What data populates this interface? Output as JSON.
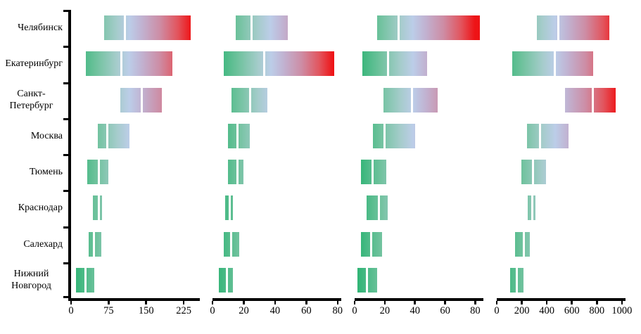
{
  "chart_data": {
    "type": "bar",
    "subtype": "range-bar-small-multiples",
    "orientation": "horizontal",
    "grid": false,
    "legend": false,
    "title": "",
    "categories": [
      "Челябинск",
      "Екатеринбург",
      "Санкт-Петербург",
      "Москва",
      "Тюмень",
      "Краснодар",
      "Салехард",
      "Нижний Новгород"
    ],
    "axis_color": "#000000",
    "background": "#ffffff",
    "gradient": {
      "description": "bar fill encodes x-value along axis: green (low) to pale blue (middle) to red (high)",
      "stops": [
        {
          "pos": 0.0,
          "color": "#26b26f"
        },
        {
          "pos": 0.2,
          "color": "#6fc29d"
        },
        {
          "pos": 0.36,
          "color": "#a5cccb"
        },
        {
          "pos": 0.46,
          "color": "#bccde8"
        },
        {
          "pos": 0.56,
          "color": "#c1b2d1"
        },
        {
          "pos": 0.7,
          "color": "#cd8da5"
        },
        {
          "pos": 0.84,
          "color": "#e2555e"
        },
        {
          "pos": 0.95,
          "color": "#ee1316"
        },
        {
          "pos": 1.0,
          "color": "#ee1316"
        }
      ]
    },
    "panels": [
      {
        "ticks": [
          0,
          75,
          150,
          225
        ],
        "axis_max": 253,
        "bars": [
          {
            "lo": 66,
            "split": 107,
            "hi": 239
          },
          {
            "lo": 30,
            "split": 101,
            "hi": 203
          },
          {
            "lo": 98,
            "split": 141,
            "hi": 181
          },
          {
            "lo": 53,
            "split": 73,
            "hi": 117
          },
          {
            "lo": 32,
            "split": 55,
            "hi": 75
          },
          {
            "lo": 44,
            "split": 55,
            "hi": 62
          },
          {
            "lo": 35,
            "split": 46,
            "hi": 60
          },
          {
            "lo": 10,
            "split": 29,
            "hi": 46
          }
        ]
      },
      {
        "ticks": [
          0,
          20,
          40,
          60,
          80
        ],
        "axis_max": 81,
        "bars": [
          {
            "lo": 15,
            "split": 25,
            "hi": 48
          },
          {
            "lo": 7,
            "split": 33,
            "hi": 78
          },
          {
            "lo": 12,
            "split": 24,
            "hi": 35
          },
          {
            "lo": 10,
            "split": 16,
            "hi": 24
          },
          {
            "lo": 10,
            "split": 16,
            "hi": 20
          },
          {
            "lo": 8,
            "split": 11,
            "hi": 13
          },
          {
            "lo": 7,
            "split": 12,
            "hi": 17
          },
          {
            "lo": 4,
            "split": 9,
            "hi": 13
          }
        ]
      },
      {
        "ticks": [
          0,
          20,
          40,
          60,
          80
        ],
        "axis_max": 84,
        "bars": [
          {
            "lo": 15,
            "split": 29,
            "hi": 83
          },
          {
            "lo": 5,
            "split": 22,
            "hi": 48
          },
          {
            "lo": 19,
            "split": 38,
            "hi": 55
          },
          {
            "lo": 12,
            "split": 20,
            "hi": 40
          },
          {
            "lo": 4,
            "split": 12,
            "hi": 21
          },
          {
            "lo": 8,
            "split": 16,
            "hi": 22
          },
          {
            "lo": 4,
            "split": 11,
            "hi": 18
          },
          {
            "lo": 2,
            "split": 8,
            "hi": 15
          }
        ]
      },
      {
        "ticks": [
          0,
          200,
          400,
          600,
          800,
          1000
        ],
        "axis_max": 1012,
        "bars": [
          {
            "lo": 322,
            "split": 494,
            "hi": 900
          },
          {
            "lo": 123,
            "split": 466,
            "hi": 772
          },
          {
            "lo": 544,
            "split": 765,
            "hi": 953
          },
          {
            "lo": 240,
            "split": 343,
            "hi": 573
          },
          {
            "lo": 199,
            "split": 287,
            "hi": 392
          },
          {
            "lo": 246,
            "split": 284,
            "hi": 310
          },
          {
            "lo": 146,
            "split": 219,
            "hi": 263
          },
          {
            "lo": 105,
            "split": 158,
            "hi": 216
          }
        ]
      }
    ]
  }
}
